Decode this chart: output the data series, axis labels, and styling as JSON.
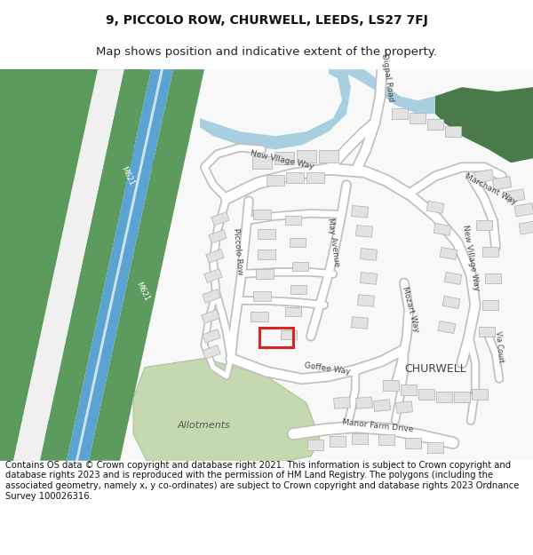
{
  "title_line1": "9, PICCOLO ROW, CHURWELL, LEEDS, LS27 7FJ",
  "title_line2": "Map shows position and indicative extent of the property.",
  "footer_text": "Contains OS data © Crown copyright and database right 2021. This information is subject to Crown copyright and database rights 2023 and is reproduced with the permission of HM Land Registry. The polygons (including the associated geometry, namely x, y co-ordinates) are subject to Crown copyright and database rights 2023 Ordnance Survey 100026316.",
  "bg_color": "#ffffff",
  "road_color": "#ffffff",
  "road_outline": "#c8c8c8",
  "building_color": "#e2e2e2",
  "building_outline": "#b8b8b8",
  "motorway_blue": "#5ba3d0",
  "motorway_green": "#5d9a5d",
  "allotment_color": "#c8ddb8",
  "water_color": "#a8cfe0",
  "dark_green": "#4a7a4a",
  "highlight_color": "#dd2222",
  "map_bg": "#f8f8f8",
  "title_fontsize": 10,
  "footer_fontsize": 7.2,
  "label_color": "#444444",
  "label_fontsize": 6.5
}
